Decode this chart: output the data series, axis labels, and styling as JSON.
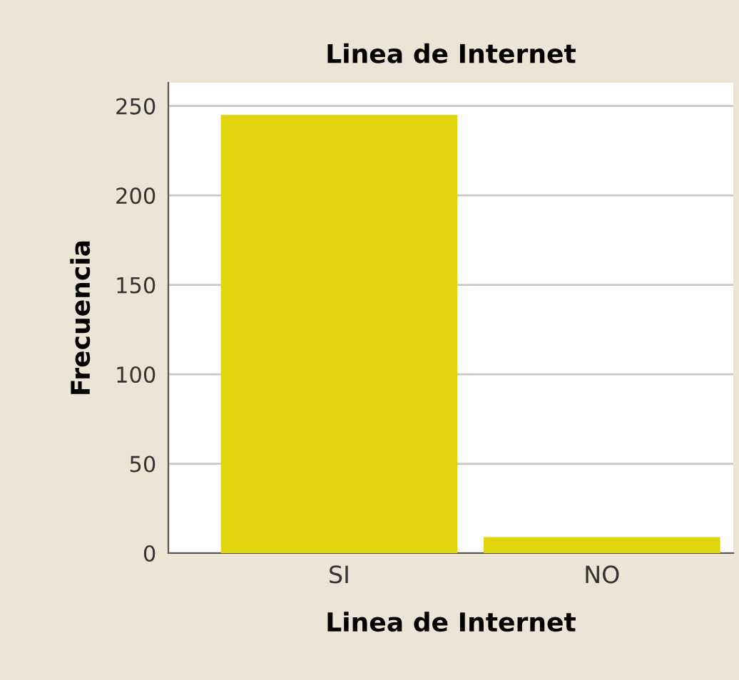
{
  "chart_data": {
    "type": "bar",
    "title": "Linea de Internet",
    "xlabel": "Linea de Internet",
    "ylabel": "Frecuencia",
    "categories": [
      "SI",
      "NO"
    ],
    "values": [
      245,
      9
    ],
    "color": "#e0d40c",
    "ylim": [
      0,
      263
    ],
    "yticks": [
      0,
      50,
      100,
      150,
      200,
      250
    ],
    "grid": "y",
    "legend": false
  }
}
